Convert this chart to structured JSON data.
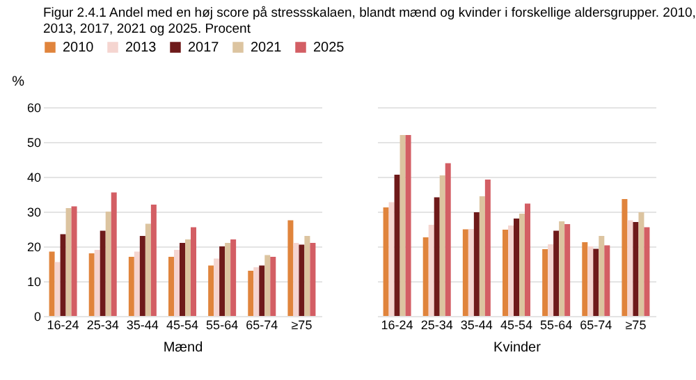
{
  "chart_data": [
    {
      "type": "bar",
      "title": "Figur 2.4.1 Andel med en høj score på stressskalaen, blandt mænd og kvinder i forskellige aldersgrupper. 2010, 2013, 2017, 2021 og 2025. Procent",
      "xlabel": "Mænd",
      "ylabel": "%",
      "categories": [
        "16-24",
        "25-34",
        "35-44",
        "45-54",
        "55-64",
        "65-74",
        "≥75"
      ],
      "series": [
        {
          "name": "2010",
          "color": "#e0843c",
          "values": [
            18.5,
            18,
            17,
            17,
            14.5,
            13,
            27.5
          ]
        },
        {
          "name": "2013",
          "color": "#f5d5d0",
          "values": [
            15.5,
            19,
            18.5,
            19,
            16.5,
            14,
            21
          ]
        },
        {
          "name": "2017",
          "color": "#6e1a1a",
          "values": [
            23.5,
            24.5,
            23,
            21,
            20,
            14.5,
            20.5
          ]
        },
        {
          "name": "2021",
          "color": "#dcc4a0",
          "values": [
            31,
            30,
            26.5,
            22,
            21,
            17.5,
            23
          ]
        },
        {
          "name": "2025",
          "color": "#d35e64",
          "values": [
            31.5,
            35.5,
            32,
            25.5,
            22,
            17,
            21
          ]
        }
      ],
      "ylim": [
        0,
        60
      ],
      "yticks": [
        0,
        10,
        20,
        30,
        40,
        50,
        60
      ],
      "grid": "y",
      "legend": "top"
    },
    {
      "type": "bar",
      "xlabel": "Kvinder",
      "categories": [
        "16-24",
        "25-34",
        "35-44",
        "45-54",
        "55-64",
        "65-74",
        "≥75"
      ],
      "series": [
        {
          "name": "2010",
          "color": "#e0843c",
          "values": [
            31.2,
            22.6,
            24.9,
            24.8,
            19.2,
            21.2,
            33.6
          ]
        },
        {
          "name": "2013",
          "color": "#f5d5d0",
          "values": [
            32.7,
            26.2,
            25,
            26,
            20.6,
            20,
            27.5
          ]
        },
        {
          "name": "2017",
          "color": "#6e1a1a",
          "values": [
            40.6,
            34.1,
            29.8,
            28,
            24.5,
            19.3,
            27
          ]
        },
        {
          "name": "2021",
          "color": "#dcc4a0",
          "values": [
            52,
            40.4,
            34.4,
            29.4,
            27.2,
            23,
            29.8
          ]
        },
        {
          "name": "2025",
          "color": "#d35e64",
          "values": [
            52,
            43.9,
            39.2,
            32.3,
            26.4,
            20.3,
            25.5
          ]
        }
      ],
      "ylim": [
        0,
        60
      ],
      "yticks": [
        0,
        10,
        20,
        30,
        40,
        50,
        60
      ],
      "grid": "y",
      "tick_labels": "x"
    }
  ]
}
